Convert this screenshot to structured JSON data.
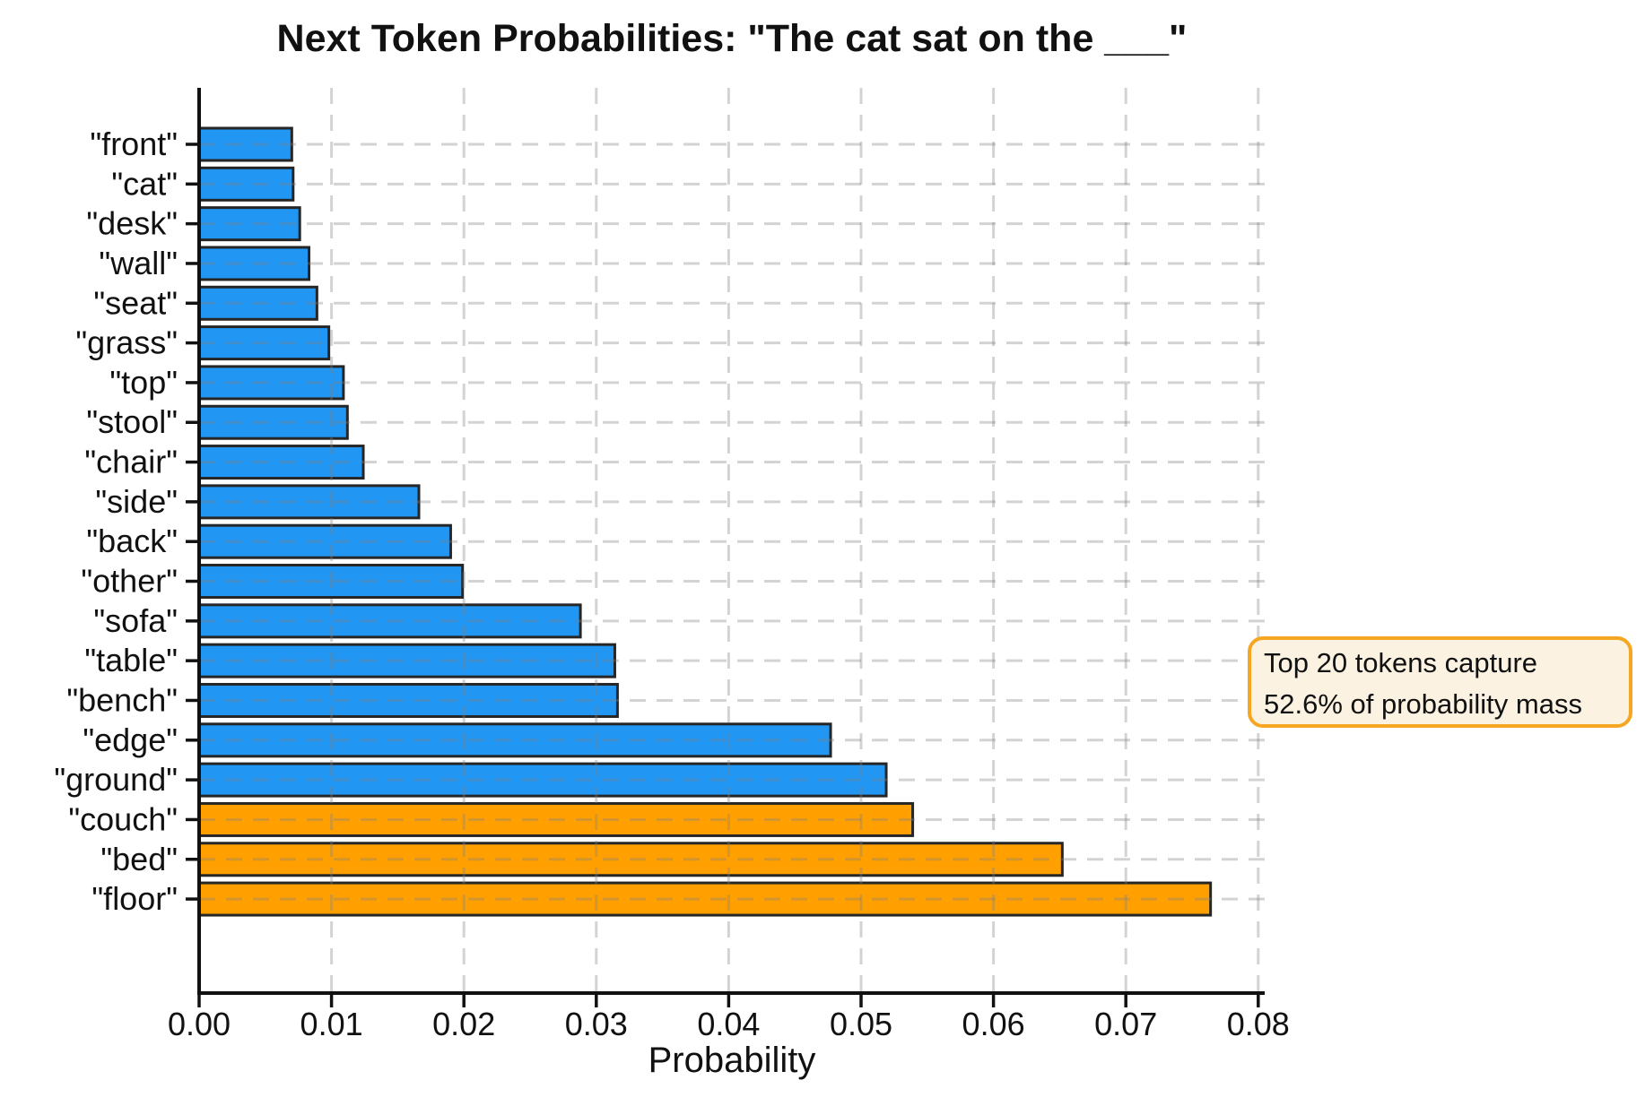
{
  "chart_data": {
    "type": "bar",
    "orientation": "horizontal",
    "title": "Next Token Probabilities: \"The cat sat on the ___\"",
    "xlabel": "Probability",
    "xlim": [
      0,
      0.0805
    ],
    "grid": true,
    "categories": [
      "\"front\"",
      "\"cat\"",
      "\"desk\"",
      "\"wall\"",
      "\"seat\"",
      "\"grass\"",
      "\"top\"",
      "\"stool\"",
      "\"chair\"",
      "\"side\"",
      "\"back\"",
      "\"other\"",
      "\"sofa\"",
      "\"table\"",
      "\"bench\"",
      "\"edge\"",
      "\"ground\"",
      "\"couch\"",
      "\"bed\"",
      "\"floor\""
    ],
    "values": [
      0.007,
      0.0071,
      0.0076,
      0.0083,
      0.0089,
      0.0098,
      0.0109,
      0.0112,
      0.0124,
      0.0166,
      0.019,
      0.0199,
      0.0288,
      0.0314,
      0.0316,
      0.0477,
      0.0519,
      0.0539,
      0.0652,
      0.0764
    ],
    "xticks": [
      0,
      0.01,
      0.02,
      0.03,
      0.04,
      0.05,
      0.06,
      0.07,
      0.08
    ],
    "xtick_labels": [
      "0.00",
      "0.01",
      "0.02",
      "0.03",
      "0.04",
      "0.05",
      "0.06",
      "0.07",
      "0.08"
    ],
    "highlighted_categories": [
      "\"couch\"",
      "\"bed\"",
      "\"floor\""
    ],
    "annotation": {
      "line1": "Top 20 tokens capture",
      "line2": "52.6% of probability mass"
    },
    "colors": {
      "bar_default": "#2196F3",
      "bar_highlight": "#FFA000",
      "bar_edge": "#262626",
      "gridline": "#808080",
      "axis": "#111111",
      "annotation_bg": "#FBF2E2",
      "annotation_border": "#F5A623",
      "text": "#111111"
    }
  }
}
